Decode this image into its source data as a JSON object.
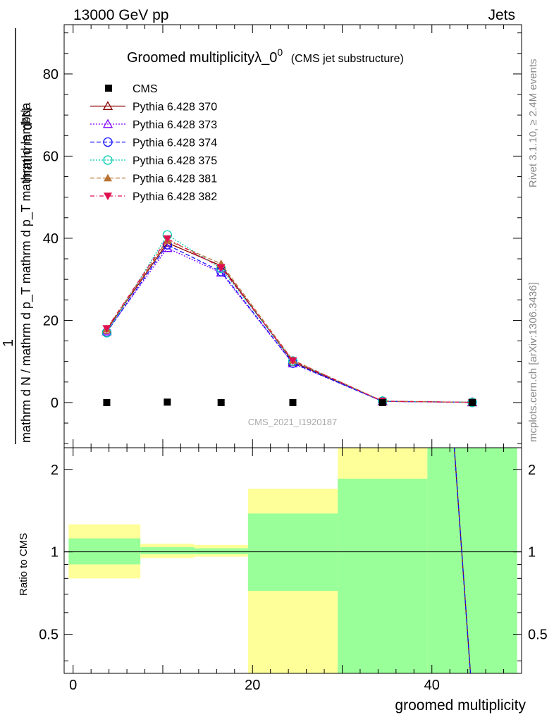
{
  "header": {
    "left": "13000 GeV pp",
    "right": "Jets"
  },
  "side": {
    "rivet": "Rivet 3.1.10, ≥ 2.4M events",
    "mcplots": "mcplots.cern.ch [arXiv:1306.3436]"
  },
  "chart_data": [
    {
      "type": "line",
      "title_main": "Groomed multiplicityλ_0",
      "title_sup": "0",
      "title_note": "(CMS jet substructure)",
      "ylabel_numerator": "mathrm d²N",
      "ylabel_denominator": "mathrm d N / mathrm d p_T mathrm d p_T mathrm d lambda",
      "analysis": "CMS_2021_I1920187",
      "xlim": [
        -1,
        50
      ],
      "ylim": [
        -11,
        92
      ],
      "yticks": [
        0,
        20,
        40,
        60,
        80
      ],
      "x": [
        3.75,
        10.5,
        16.5,
        24.5,
        34.5,
        44.5
      ],
      "data": {
        "name": "CMS",
        "color": "#000000",
        "values": [
          0,
          0.1,
          0,
          0,
          0,
          0
        ]
      },
      "series": [
        {
          "name": "Pythia 6.428 370",
          "color": "#8b0000",
          "dash": "",
          "marker": "triangle-open",
          "values": [
            17.7,
            38.9,
            33.3,
            9.9,
            0.3,
            0.05
          ]
        },
        {
          "name": "Pythia 6.428 373",
          "color": "#7f00ff",
          "dash": "2,2",
          "marker": "triangle-open",
          "values": [
            17.3,
            37.6,
            31.6,
            9.5,
            0.3,
            0.05
          ]
        },
        {
          "name": "Pythia 6.428 374",
          "color": "#1010ff",
          "dash": "6,3",
          "marker": "circle-open",
          "values": [
            17.1,
            38.4,
            31.9,
            9.6,
            0.3,
            0.05
          ]
        },
        {
          "name": "Pythia 6.428 375",
          "color": "#00ccb0",
          "dash": "2,2",
          "marker": "circle-open",
          "values": [
            17.0,
            40.8,
            32.7,
            10.1,
            0.35,
            0.05
          ]
        },
        {
          "name": "Pythia 6.428 381",
          "color": "#b87333",
          "dash": "6,3",
          "marker": "triangle-filled",
          "values": [
            17.9,
            39.5,
            33.8,
            10.3,
            0.35,
            0.05
          ]
        },
        {
          "name": "Pythia 6.428 382",
          "color": "#e0104f",
          "dash": "6,3,1,3",
          "marker": "triangle-down-filled",
          "values": [
            18.0,
            39.9,
            32.9,
            10.2,
            0.35,
            0.05
          ]
        }
      ]
    },
    {
      "type": "area",
      "ylabel": "Ratio to CMS",
      "xlabel": "groomed multiplicity",
      "xlim": [
        -1,
        50
      ],
      "ylim": [
        0.36,
        2.4
      ],
      "scale": "log",
      "xticks": [
        0,
        20,
        40
      ],
      "yticks": [
        0.5,
        1,
        2
      ],
      "bins": [
        {
          "lo": -0.5,
          "hi": 7.5,
          "inner": [
            0.9,
            1.12
          ],
          "outer": [
            0.8,
            1.26
          ]
        },
        {
          "lo": 7.5,
          "hi": 13.5,
          "inner": [
            0.98,
            1.04
          ],
          "outer": [
            0.95,
            1.07
          ]
        },
        {
          "lo": 13.5,
          "hi": 19.5,
          "inner": [
            0.98,
            1.03
          ],
          "outer": [
            0.96,
            1.06
          ]
        },
        {
          "lo": 19.5,
          "hi": 29.5,
          "inner": [
            0.72,
            1.38
          ],
          "outer": [
            0.36,
            1.7
          ]
        },
        {
          "lo": 29.5,
          "hi": 39.5,
          "inner": [
            0.36,
            1.85
          ],
          "outer": [
            0.36,
            2.4
          ]
        },
        {
          "lo": 39.5,
          "hi": 49.5,
          "inner": [
            0.36,
            2.4
          ],
          "outer": [
            0.36,
            2.4
          ]
        }
      ],
      "ratio_line": {
        "colors": [
          "#8b0000",
          "#1010ff"
        ],
        "x": [
          42.5,
          44.3
        ],
        "y": [
          2.4,
          0.36
        ]
      }
    }
  ]
}
